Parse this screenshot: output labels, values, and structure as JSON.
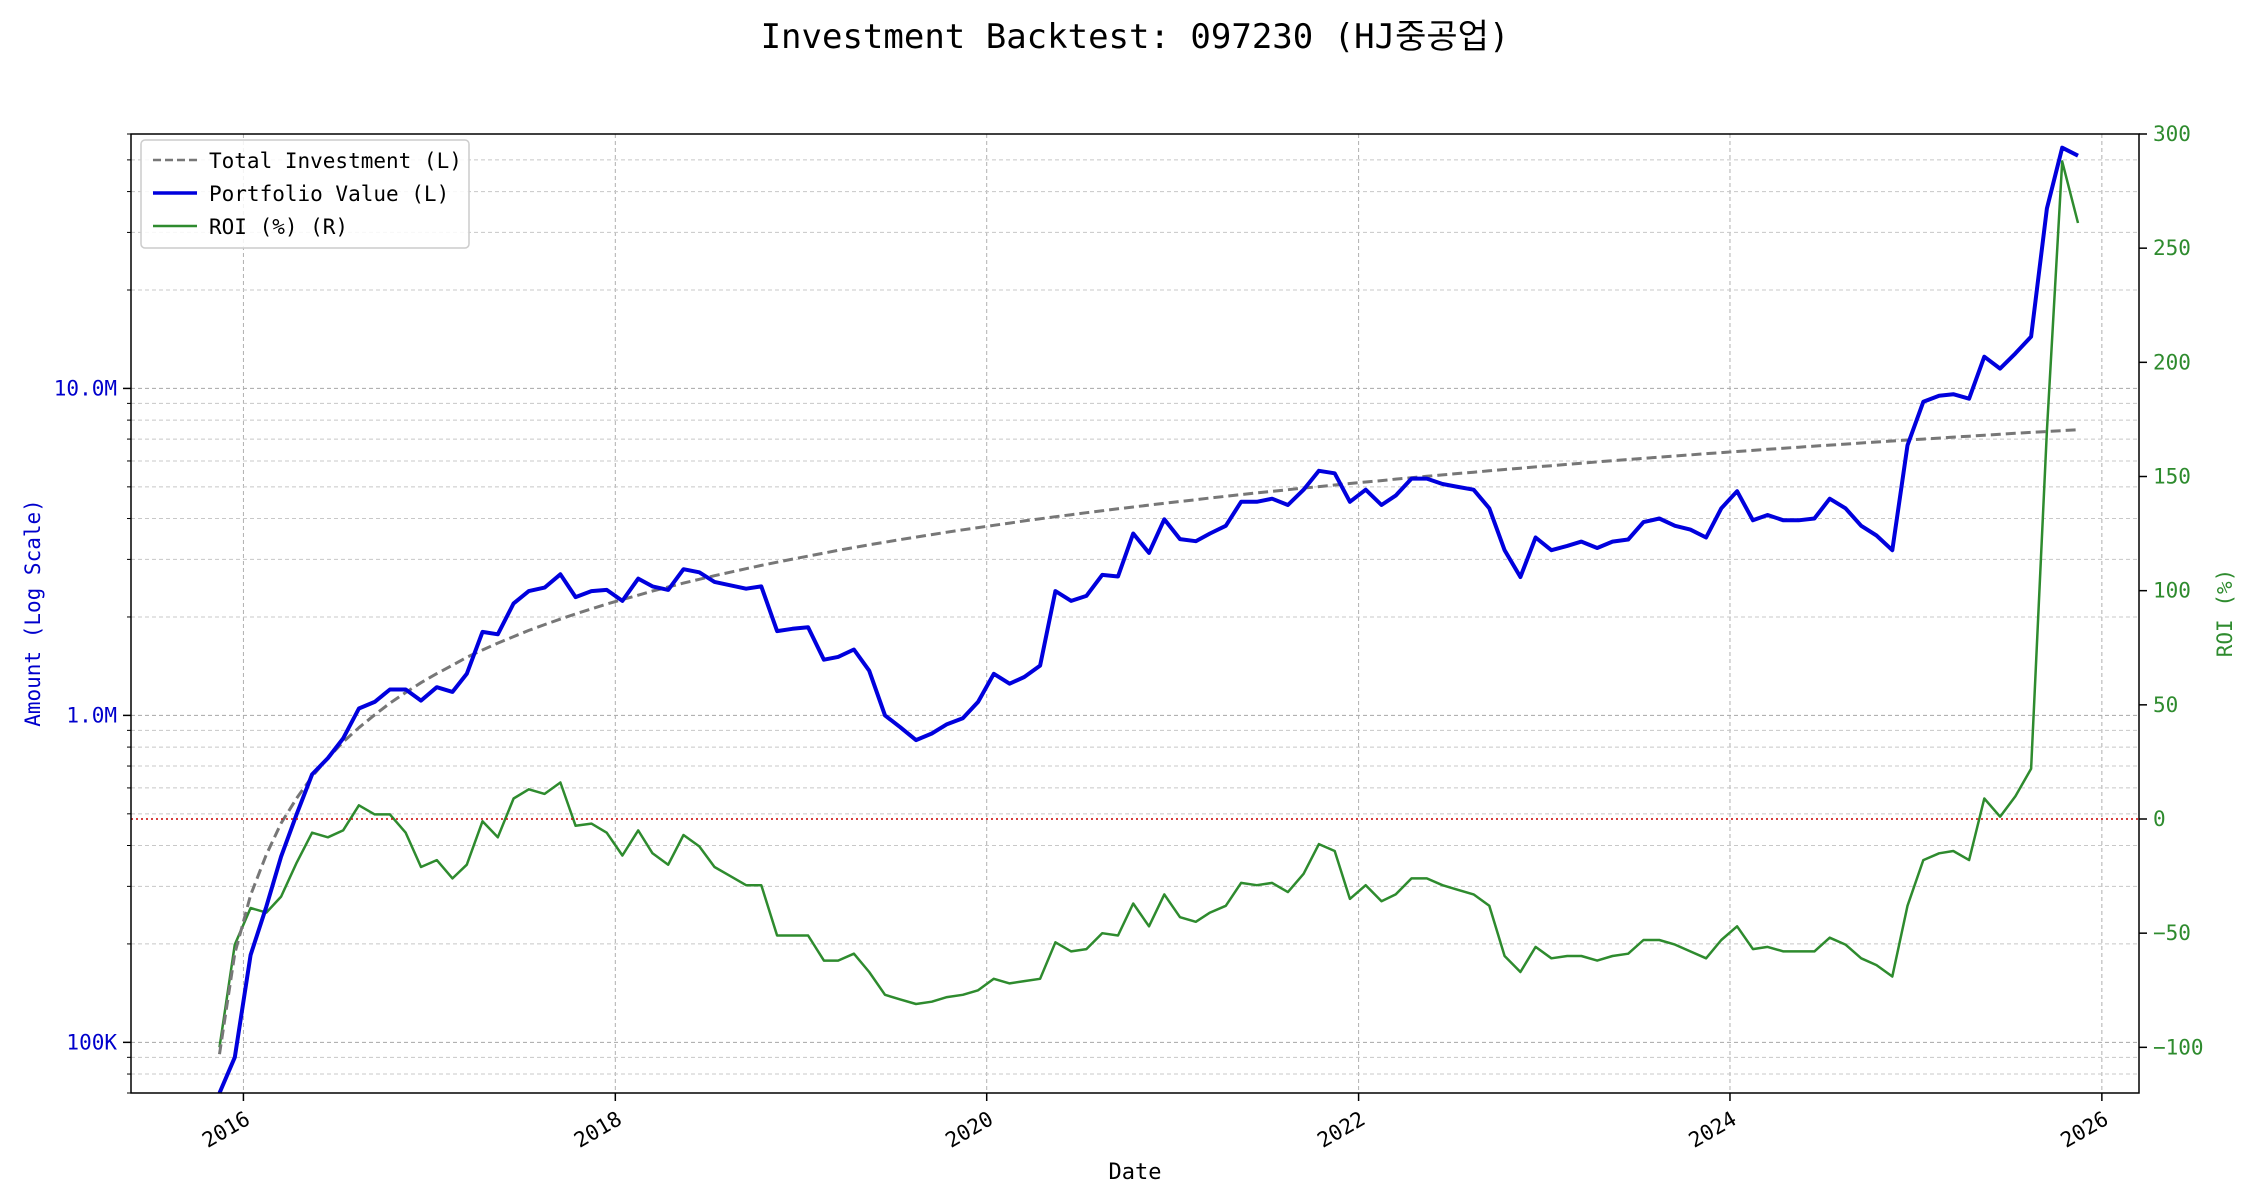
{
  "chart_data": {
    "type": "line",
    "title": "Investment Backtest: 097230 (HJ중공업)",
    "xlabel": "Date",
    "ylabel_left": "Amount (Log Scale)",
    "ylabel_right": "ROI (%)",
    "y_left_scale": "log",
    "y_left_range": [
      70000,
      60000000
    ],
    "y_left_ticks": [
      {
        "value": 100000,
        "label": "100K"
      },
      {
        "value": 1000000,
        "label": "1.0M"
      },
      {
        "value": 10000000,
        "label": "10.0M"
      }
    ],
    "y_right_range": [
      -120,
      300
    ],
    "y_right_ticks": [
      {
        "value": -100,
        "label": "−100"
      },
      {
        "value": -50,
        "label": "−50"
      },
      {
        "value": 0,
        "label": "0"
      },
      {
        "value": 50,
        "label": "50"
      },
      {
        "value": 100,
        "label": "100"
      },
      {
        "value": 150,
        "label": "150"
      },
      {
        "value": 200,
        "label": "200"
      },
      {
        "value": 250,
        "label": "250"
      },
      {
        "value": 300,
        "label": "300"
      }
    ],
    "x_range": [
      "2015-05-25",
      "2026-03-15"
    ],
    "x_ticks": [
      {
        "value": "2016-01-01",
        "label": "2016"
      },
      {
        "value": "2018-01-01",
        "label": "2018"
      },
      {
        "value": "2020-01-01",
        "label": "2020"
      },
      {
        "value": "2022-01-01",
        "label": "2022"
      },
      {
        "value": "2024-01-01",
        "label": "2024"
      },
      {
        "value": "2026-01-01",
        "label": "2026"
      }
    ],
    "grid": true,
    "legend_placement": "top-left",
    "reference_line": {
      "axis": "right",
      "value": 0,
      "color": "#cc0000",
      "style": "dotted"
    },
    "x": [
      "2015-11",
      "2015-12",
      "2016-01",
      "2016-02",
      "2016-03",
      "2016-04",
      "2016-05",
      "2016-06",
      "2016-07",
      "2016-08",
      "2016-09",
      "2016-10",
      "2016-11",
      "2016-12",
      "2017-01",
      "2017-02",
      "2017-03",
      "2017-04",
      "2017-05",
      "2017-06",
      "2017-07",
      "2017-08",
      "2017-09",
      "2017-10",
      "2017-11",
      "2017-12",
      "2018-01",
      "2018-02",
      "2018-03",
      "2018-04",
      "2018-05",
      "2018-06",
      "2018-07",
      "2018-08",
      "2018-09",
      "2018-10",
      "2018-11",
      "2018-12",
      "2019-01",
      "2019-02",
      "2019-03",
      "2019-04",
      "2019-05",
      "2019-06",
      "2019-07",
      "2019-08",
      "2019-09",
      "2019-10",
      "2019-11",
      "2019-12",
      "2020-01",
      "2020-02",
      "2020-03",
      "2020-04",
      "2020-05",
      "2020-06",
      "2020-07",
      "2020-08",
      "2020-09",
      "2020-10",
      "2020-11",
      "2020-12",
      "2021-01",
      "2021-02",
      "2021-03",
      "2021-04",
      "2021-05",
      "2021-06",
      "2021-07",
      "2021-08",
      "2021-09",
      "2021-10",
      "2021-11",
      "2021-12",
      "2022-01",
      "2022-02",
      "2022-03",
      "2022-04",
      "2022-05",
      "2022-06",
      "2022-07",
      "2022-08",
      "2022-09",
      "2022-10",
      "2022-11",
      "2022-12",
      "2023-01",
      "2023-02",
      "2023-03",
      "2023-04",
      "2023-05",
      "2023-06",
      "2023-07",
      "2023-08",
      "2023-09",
      "2023-10",
      "2023-11",
      "2023-12",
      "2024-01",
      "2024-02",
      "2024-03",
      "2024-04",
      "2024-05",
      "2024-06",
      "2024-07",
      "2024-08",
      "2024-09",
      "2024-10",
      "2024-11",
      "2024-12",
      "2025-01",
      "2025-02",
      "2025-03",
      "2025-04",
      "2025-05",
      "2025-06",
      "2025-07",
      "2025-08",
      "2025-09",
      "2025-10",
      "2025-11"
    ],
    "series": [
      {
        "name": "Total Investment (L)",
        "axis": "left",
        "color": "#777777",
        "style": "dashed",
        "values": [
          92000,
          187000,
          282000,
          375000,
          468000,
          559000,
          650000,
          740000,
          829000,
          917000,
          1004000,
          1090000,
          1175000,
          1259000,
          1342000,
          1424000,
          1505000,
          1585000,
          1664000,
          1742000,
          1819000,
          1895000,
          1970000,
          2044000,
          2117000,
          2189000,
          2260000,
          2331000,
          2401000,
          2470000,
          2539000,
          2607000,
          2675000,
          2742000,
          2809000,
          2875000,
          2941000,
          3006000,
          3071000,
          3135000,
          3199000,
          3262000,
          3325000,
          3387000,
          3449000,
          3511000,
          3572000,
          3633000,
          3694000,
          3754000,
          3814000,
          3874000,
          3933000,
          3992000,
          4051000,
          4109000,
          4167000,
          4225000,
          4283000,
          4340000,
          4397000,
          4454000,
          4511000,
          4567000,
          4623000,
          4679000,
          4735000,
          4790000,
          4845000,
          4900000,
          4955000,
          5010000,
          5064000,
          5118000,
          5172000,
          5226000,
          5280000,
          5333000,
          5386000,
          5439000,
          5492000,
          5545000,
          5597000,
          5649000,
          5701000,
          5753000,
          5805000,
          5857000,
          5908000,
          5959000,
          6010000,
          6061000,
          6112000,
          6163000,
          6213000,
          6263000,
          6313000,
          6363000,
          6413000,
          6463000,
          6513000,
          6562000,
          6611000,
          6660000,
          6709000,
          6758000,
          6807000,
          6856000,
          6905000,
          6953000,
          7001000,
          7049000,
          7097000,
          7145000,
          7193000,
          7241000,
          7289000,
          7337000,
          7385000,
          7432000,
          7479000
        ]
      },
      {
        "name": "Portfolio Value (L)",
        "axis": "left",
        "color": "#0000dd",
        "style": "solid",
        "values": [
          60000,
          90000,
          185000,
          260000,
          370000,
          500000,
          660000,
          740000,
          850000,
          1050000,
          1100000,
          1200000,
          1200000,
          1110000,
          1220000,
          1180000,
          1340000,
          1800000,
          1770000,
          2200000,
          2400000,
          2460000,
          2700000,
          2300000,
          2400000,
          2420000,
          2240000,
          2620000,
          2480000,
          2420000,
          2800000,
          2740000,
          2560000,
          2500000,
          2440000,
          2480000,
          1810000,
          1840000,
          1860000,
          1480000,
          1510000,
          1590000,
          1370000,
          1000000,
          920000,
          840000,
          880000,
          940000,
          980000,
          1100000,
          1340000,
          1250000,
          1310000,
          1420000,
          2400000,
          2240000,
          2320000,
          2690000,
          2660000,
          3600000,
          3140000,
          3980000,
          3460000,
          3410000,
          3600000,
          3800000,
          4500000,
          4500000,
          4600000,
          4400000,
          4900000,
          5600000,
          5500000,
          4500000,
          4900000,
          4400000,
          4700000,
          5300000,
          5300000,
          5100000,
          5000000,
          4900000,
          4300000,
          3200000,
          2650000,
          3500000,
          3200000,
          3300000,
          3400000,
          3250000,
          3400000,
          3450000,
          3900000,
          4000000,
          3800000,
          3700000,
          3500000,
          4300000,
          4850000,
          3950000,
          4100000,
          3950000,
          3950000,
          4000000,
          4600000,
          4300000,
          3800000,
          3550000,
          3200000,
          6700000,
          9100000,
          9500000,
          9600000,
          9300000,
          12500000,
          11500000,
          12800000,
          14400000,
          35500000,
          54500000,
          51500000
        ]
      },
      {
        "name": "ROI (%) (R)",
        "axis": "right",
        "color": "#2e8b2e",
        "style": "solid",
        "values": [
          -100,
          -55,
          -39,
          -41,
          -34,
          -19,
          -6,
          -8,
          -5,
          6,
          2,
          2,
          -6,
          -21,
          -18,
          -26,
          -20,
          -1,
          -8,
          9,
          13,
          11,
          16,
          -3,
          -2,
          -6,
          -16,
          -5,
          -15,
          -20,
          -7,
          -12,
          -21,
          -25,
          -29,
          -29,
          -51,
          -51,
          -51,
          -62,
          -62,
          -59,
          -67,
          -77,
          -79,
          -81,
          -80,
          -78,
          -77,
          -75,
          -70,
          -72,
          -71,
          -70,
          -54,
          -58,
          -57,
          -50,
          -51,
          -37,
          -47,
          -33,
          -43,
          -45,
          -41,
          -38,
          -28,
          -29,
          -28,
          -32,
          -24,
          -11,
          -14,
          -35,
          -29,
          -36,
          -33,
          -26,
          -26,
          -29,
          -31,
          -33,
          -38,
          -60,
          -67,
          -56,
          -61,
          -60,
          -60,
          -62,
          -60,
          -59,
          -53,
          -53,
          -55,
          -58,
          -61,
          -53,
          -47,
          -57,
          -56,
          -58,
          -58,
          -58,
          -52,
          -55,
          -61,
          -64,
          -69,
          -38,
          -18,
          -15,
          -14,
          -18,
          9,
          1,
          10,
          22,
          170,
          288,
          261
        ]
      }
    ]
  }
}
